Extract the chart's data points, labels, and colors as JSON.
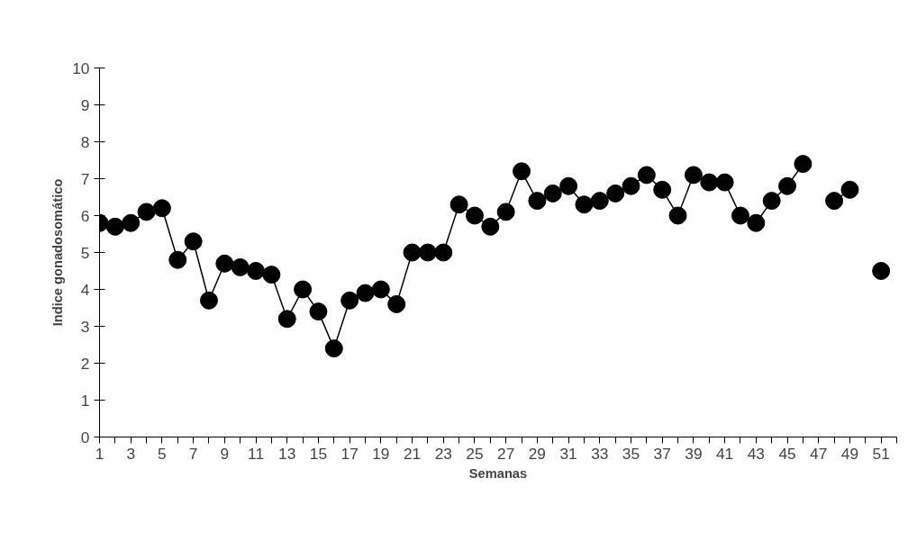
{
  "chart_data": {
    "type": "line",
    "xlabel": "Semanas",
    "ylabel": "Indice gonadosomático",
    "x": [
      1,
      2,
      3,
      4,
      5,
      6,
      7,
      8,
      9,
      10,
      11,
      12,
      13,
      14,
      15,
      16,
      17,
      18,
      19,
      20,
      21,
      22,
      23,
      24,
      25,
      26,
      27,
      28,
      29,
      30,
      31,
      32,
      33,
      34,
      35,
      36,
      37,
      38,
      39,
      40,
      41,
      42,
      43,
      44,
      45,
      46,
      47,
      48,
      49,
      50,
      51
    ],
    "series": [
      {
        "color": "#000000",
        "values": [
          5.8,
          5.7,
          5.8,
          6.1,
          6.2,
          4.8,
          5.3,
          3.7,
          4.7,
          4.6,
          4.5,
          4.4,
          3.2,
          4.0,
          3.4,
          2.4,
          3.7,
          3.9,
          4.0,
          3.6,
          5.0,
          5.0,
          5.0,
          6.3,
          6.0,
          5.7,
          6.1,
          7.2,
          6.4,
          6.6,
          6.8,
          6.3,
          6.4,
          6.6,
          6.8,
          7.1,
          6.7,
          6.0,
          7.1,
          6.9,
          6.9,
          6.0,
          5.8,
          6.4,
          6.8,
          7.4,
          null,
          6.4,
          6.7,
          null,
          4.5
        ]
      }
    ],
    "xlim": [
      1,
      52
    ],
    "xticks": [
      1,
      {
        "value": 2,
        "label": null
      },
      3,
      {
        "value": 4,
        "label": null
      },
      5,
      {
        "value": 6,
        "label": null
      },
      7,
      {
        "value": 8,
        "label": null
      },
      9,
      {
        "value": 10,
        "label": null
      },
      11,
      {
        "value": 12,
        "label": null
      },
      13,
      {
        "value": 14,
        "label": null
      },
      15,
      {
        "value": 16,
        "label": null
      },
      17,
      {
        "value": 18,
        "label": null
      },
      19,
      {
        "value": 20,
        "label": null
      },
      21,
      {
        "value": 22,
        "label": null
      },
      23,
      {
        "value": 24,
        "label": null
      },
      25,
      {
        "value": 26,
        "label": null
      },
      27,
      {
        "value": 28,
        "label": null
      },
      29,
      {
        "value": 30,
        "label": null
      },
      31,
      {
        "value": 32,
        "label": null
      },
      33,
      {
        "value": 34,
        "label": null
      },
      35,
      {
        "value": 36,
        "label": null
      },
      37,
      {
        "value": 38,
        "label": null
      },
      39,
      {
        "value": 40,
        "label": null
      },
      41,
      {
        "value": 42,
        "label": null
      },
      43,
      {
        "value": 44,
        "label": null
      },
      45,
      {
        "value": 46,
        "label": null
      },
      47,
      {
        "value": 48,
        "label": null
      },
      49,
      {
        "value": 50,
        "label": null
      },
      51,
      {
        "value": 52,
        "label": null
      }
    ],
    "ylim": [
      0,
      10
    ],
    "yticks": [
      0,
      1,
      2,
      3,
      4,
      5,
      6,
      7,
      8,
      9,
      10
    ],
    "marker": "circle",
    "line_style": "solid",
    "grid": false
  }
}
